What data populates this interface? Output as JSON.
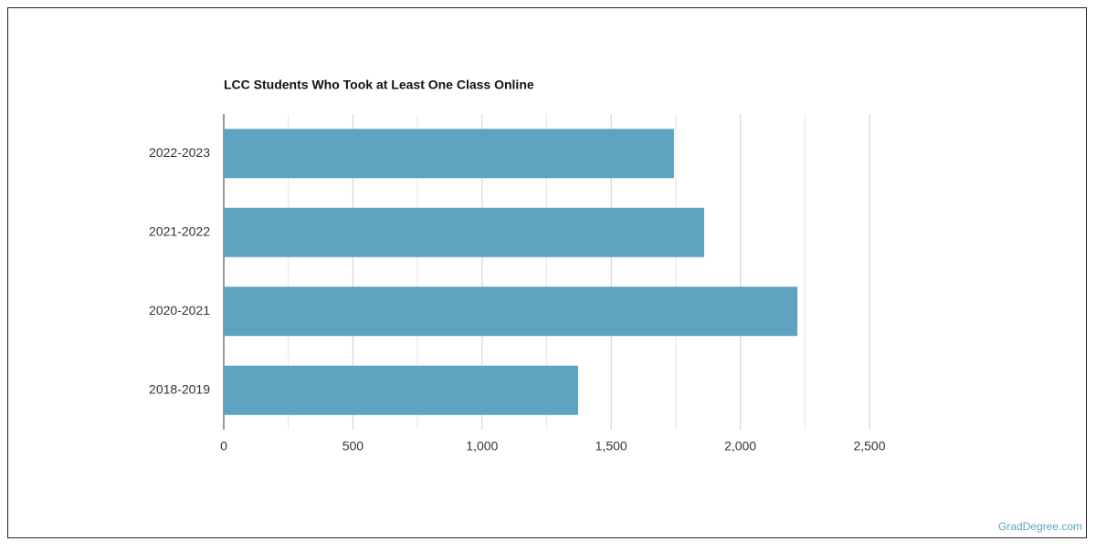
{
  "chart_data": {
    "type": "hbar",
    "title": "LCC Students Who Took at Least One Class Online",
    "categories": [
      "2022-2023",
      "2021-2022",
      "2020-2021",
      "2018-2019"
    ],
    "values": [
      1743,
      1860,
      2221,
      1372
    ],
    "color": "#5ea3bf",
    "xlim": [
      0,
      2500
    ],
    "xticks": [
      0,
      500,
      {
        "value": 1000,
        "label": "1,000"
      },
      {
        "value": 1500,
        "label": "1,500"
      },
      {
        "value": 2000,
        "label": "2,000"
      },
      {
        "value": 2500,
        "label": "2,500"
      }
    ],
    "minor_gridlines": [
      250,
      750,
      1250,
      1750,
      2250
    ],
    "grid": true
  },
  "footer": "GradDegree.com"
}
